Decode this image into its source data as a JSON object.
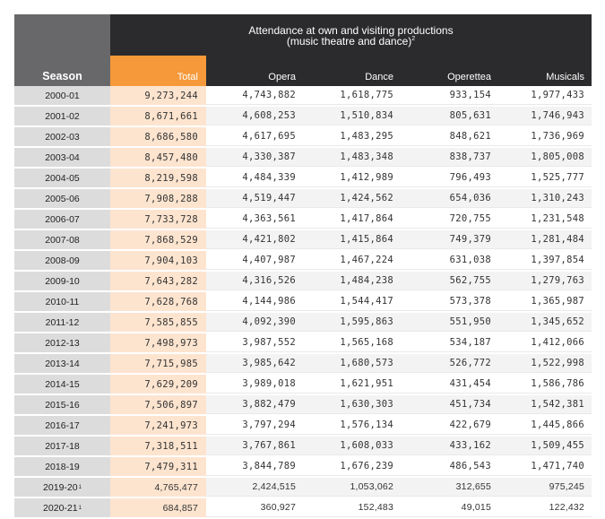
{
  "table": {
    "title_line1": "Attendance at own and visiting productions",
    "title_line2": "(music theatre and dance)",
    "title_footnote": "2",
    "headers": {
      "season": "Season",
      "total": "Total",
      "opera": "Opera",
      "dance": "Dance",
      "operetta": "Operettea",
      "musicals": "Musicals"
    },
    "rows": [
      {
        "season": "2000-01",
        "fn": "",
        "total": "9,273,244",
        "opera": "4,743,882",
        "dance": "1,618,775",
        "operetta": "933,154",
        "musicals": "1,977,433"
      },
      {
        "season": "2001-02",
        "fn": "",
        "total": "8,671,661",
        "opera": "4,608,253",
        "dance": "1,510,834",
        "operetta": "805,631",
        "musicals": "1,746,943"
      },
      {
        "season": "2002-03",
        "fn": "",
        "total": "8,686,580",
        "opera": "4,617,695",
        "dance": "1,483,295",
        "operetta": "848,621",
        "musicals": "1,736,969"
      },
      {
        "season": "2003-04",
        "fn": "",
        "total": "8,457,480",
        "opera": "4,330,387",
        "dance": "1,483,348",
        "operetta": "838,737",
        "musicals": "1,805,008"
      },
      {
        "season": "2004-05",
        "fn": "",
        "total": "8,219,598",
        "opera": "4,484,339",
        "dance": "1,412,989",
        "operetta": "796,493",
        "musicals": "1,525,777"
      },
      {
        "season": "2005-06",
        "fn": "",
        "total": "7,908,288",
        "opera": "4,519,447",
        "dance": "1,424,562",
        "operetta": "654,036",
        "musicals": "1,310,243"
      },
      {
        "season": "2006-07",
        "fn": "",
        "total": "7,733,728",
        "opera": "4,363,561",
        "dance": "1,417,864",
        "operetta": "720,755",
        "musicals": "1,231,548"
      },
      {
        "season": "2007-08",
        "fn": "",
        "total": "7,868,529",
        "opera": "4,421,802",
        "dance": "1,415,864",
        "operetta": "749,379",
        "musicals": "1,281,484"
      },
      {
        "season": "2008-09",
        "fn": "",
        "total": "7,904,103",
        "opera": "4,407,987",
        "dance": "1,467,224",
        "operetta": "631,038",
        "musicals": "1,397,854"
      },
      {
        "season": "2009-10",
        "fn": "",
        "total": "7,643,282",
        "opera": "4,316,526",
        "dance": "1,484,238",
        "operetta": "562,755",
        "musicals": "1,279,763"
      },
      {
        "season": "2010-11",
        "fn": "",
        "total": "7,628,768",
        "opera": "4,144,986",
        "dance": "1,544,417",
        "operetta": "573,378",
        "musicals": "1,365,987"
      },
      {
        "season": "2011-12",
        "fn": "",
        "total": "7,585,855",
        "opera": "4,092,390",
        "dance": "1,595,863",
        "operetta": "551,950",
        "musicals": "1,345,652"
      },
      {
        "season": "2012-13",
        "fn": "",
        "total": "7,498,973",
        "opera": "3,987,552",
        "dance": "1,565,168",
        "operetta": "534,187",
        "musicals": "1,412,066"
      },
      {
        "season": "2013-14",
        "fn": "",
        "total": "7,715,985",
        "opera": "3,985,642",
        "dance": "1,680,573",
        "operetta": "526,772",
        "musicals": "1,522,998"
      },
      {
        "season": "2014-15",
        "fn": "",
        "total": "7,629,209",
        "opera": "3,989,018",
        "dance": "1,621,951",
        "operetta": "431,454",
        "musicals": "1,586,786"
      },
      {
        "season": "2015-16",
        "fn": "",
        "total": "7,506,897",
        "opera": "3,882,479",
        "dance": "1,630,303",
        "operetta": "451,734",
        "musicals": "1,542,381"
      },
      {
        "season": "2016-17",
        "fn": "",
        "total": "7,241,973",
        "opera": "3,797,294",
        "dance": "1,576,134",
        "operetta": "422,679",
        "musicals": "1,445,866"
      },
      {
        "season": "2017-18",
        "fn": "",
        "total": "7,318,511",
        "opera": "3,767,861",
        "dance": "1,608,033",
        "operetta": "433,162",
        "musicals": "1,509,455"
      },
      {
        "season": "2018-19",
        "fn": "",
        "total": "7,479,311",
        "opera": "3,844,789",
        "dance": "1,676,239",
        "operetta": "486,543",
        "musicals": "1,471,740"
      },
      {
        "season": "2019-20",
        "fn": "1",
        "total": "4,765,477",
        "opera": "2,424,515",
        "dance": "1,053,062",
        "operetta": "312,655",
        "musicals": "975,245"
      },
      {
        "season": "2020-21",
        "fn": "1",
        "total": "684,857",
        "opera": "360,927",
        "dance": "152,483",
        "operetta": "49,015",
        "musicals": "122,432"
      }
    ]
  }
}
